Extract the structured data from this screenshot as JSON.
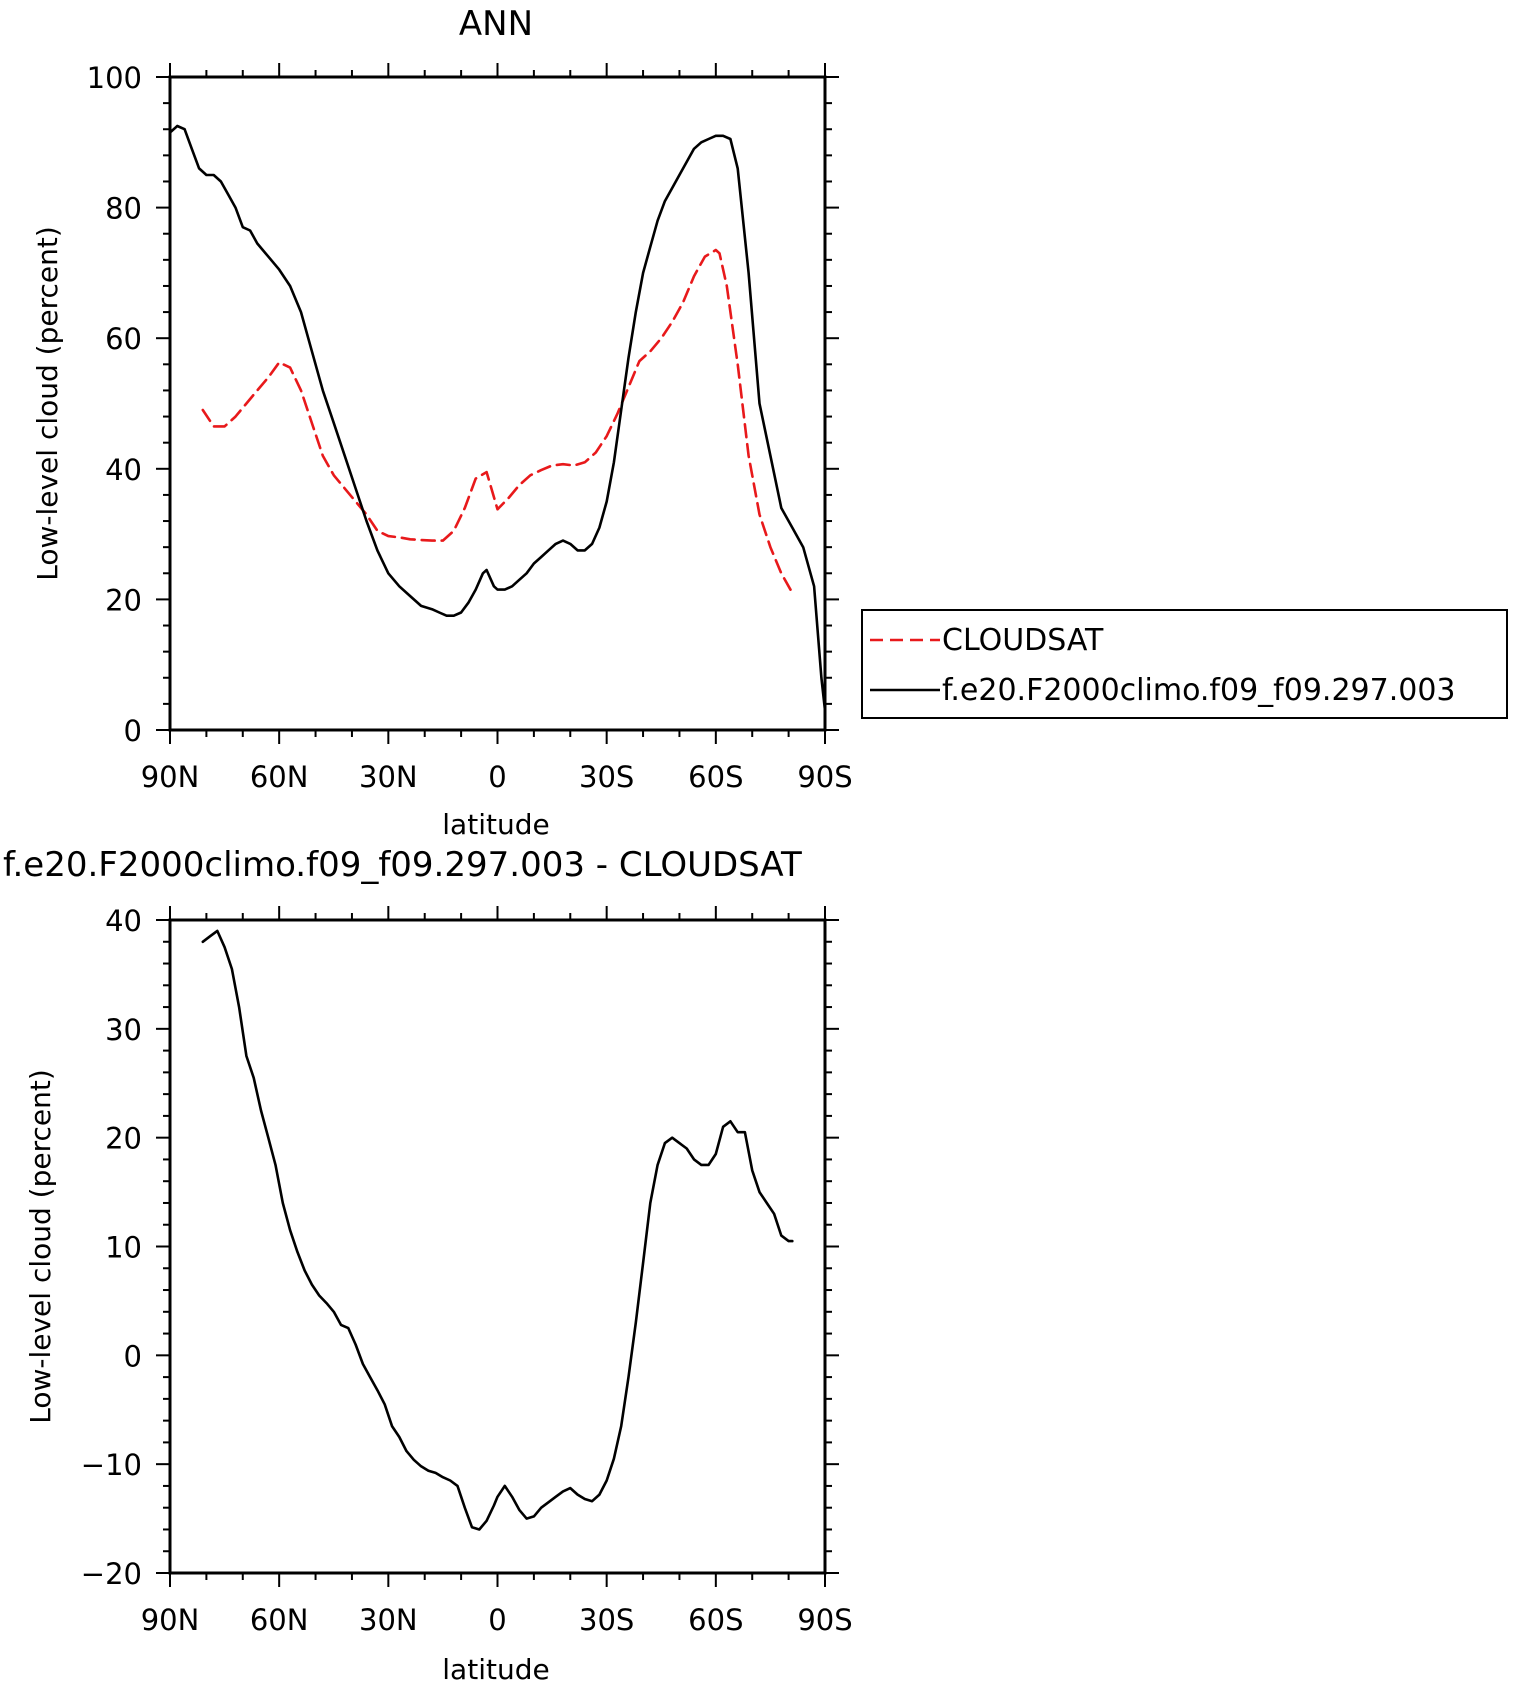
{
  "chart_data": [
    {
      "type": "line",
      "title": "ANN",
      "xlabel": "latitude",
      "ylabel": "Low-level cloud (percent)",
      "xlim": [
        90,
        -90
      ],
      "ylim": [
        0,
        100
      ],
      "xticks": [
        90,
        60,
        30,
        0,
        -30,
        -60,
        -90
      ],
      "xtick_labels": [
        "90N",
        "60N",
        "30N",
        "0",
        "30S",
        "60S",
        "90S"
      ],
      "yticks": [
        0,
        20,
        40,
        60,
        80,
        100
      ],
      "ytick_labels": [
        "0",
        "20",
        "40",
        "60",
        "80",
        "100"
      ],
      "grid": false,
      "legend_position": "right",
      "series": [
        {
          "name": "CLOUDSAT",
          "color": "#e8191b",
          "dash": "dashed",
          "x": [
            81,
            78,
            75,
            72,
            69,
            66,
            63,
            60,
            57,
            54,
            51,
            48,
            45,
            42,
            39,
            36,
            33,
            30,
            27,
            24,
            21,
            18,
            15,
            12,
            9,
            6,
            3,
            0,
            -3,
            -6,
            -9,
            -12,
            -15,
            -18,
            -21,
            -24,
            -27,
            -30,
            -33,
            -36,
            -39,
            -42,
            -45,
            -48,
            -51,
            -54,
            -57,
            -60,
            -61,
            -63,
            -66,
            -69,
            -72,
            -75,
            -78,
            -81
          ],
          "y": [
            49,
            46.5,
            46.5,
            48,
            50,
            52,
            54,
            56.3,
            55.5,
            52,
            47,
            42,
            39,
            37,
            35,
            33,
            30.5,
            29.7,
            29.5,
            29.2,
            29.1,
            29,
            29,
            30.5,
            34,
            38.5,
            39.5,
            33.8,
            35.5,
            37.5,
            39,
            39.8,
            40.5,
            40.7,
            40.5,
            41,
            42.5,
            45,
            48.5,
            52.5,
            56.5,
            58,
            60,
            62.5,
            65.5,
            69.5,
            72.5,
            73.5,
            73,
            68,
            56,
            42,
            33,
            28,
            24,
            21
          ]
        },
        {
          "name": "f.e20.F2000climo.f09_f09.297.003",
          "color": "#000000",
          "dash": "solid",
          "x": [
            90,
            88,
            86,
            84,
            82,
            80,
            78,
            76,
            74,
            72,
            70,
            68,
            66,
            63,
            60,
            57,
            54,
            51,
            48,
            45,
            42,
            39,
            36,
            33,
            30,
            27,
            24,
            21,
            18,
            16,
            14,
            12,
            10,
            8,
            6,
            4,
            3,
            1,
            0,
            -2,
            -4,
            -6,
            -8,
            -10,
            -12,
            -14,
            -16,
            -18,
            -20,
            -22,
            -24,
            -26,
            -28,
            -30,
            -32,
            -34,
            -36,
            -38,
            -40,
            -42,
            -44,
            -46,
            -48,
            -50,
            -52,
            -54,
            -56,
            -58,
            -60,
            -62,
            -64,
            -66,
            -69,
            -72,
            -75,
            -78,
            -81,
            -84,
            -87,
            -89,
            -90
          ],
          "y": [
            91.5,
            92.5,
            92,
            89,
            86,
            85,
            85,
            84,
            82,
            80,
            77,
            76.5,
            74.5,
            72.5,
            70.5,
            68,
            64,
            58,
            52,
            47,
            42,
            37,
            32,
            27.5,
            24,
            22,
            20.5,
            19,
            18.5,
            18,
            17.5,
            17.5,
            18,
            19.5,
            21.5,
            24,
            24.5,
            22,
            21.5,
            21.5,
            22,
            23,
            24,
            25.5,
            26.5,
            27.5,
            28.5,
            29,
            28.5,
            27.5,
            27.5,
            28.5,
            31,
            35,
            41,
            49,
            57,
            64,
            70,
            74,
            78,
            81,
            83,
            85,
            87,
            89,
            90,
            90.5,
            91,
            91,
            90.5,
            86,
            70,
            50,
            42,
            34,
            31,
            28,
            22,
            8,
            3
          ]
        }
      ]
    },
    {
      "type": "line",
      "title": "f.e20.F2000climo.f09_f09.297.003 - CLOUDSAT",
      "xlabel": "latitude",
      "ylabel": "Low-level cloud (percent)",
      "xlim": [
        90,
        -90
      ],
      "ylim": [
        -20,
        40
      ],
      "xticks": [
        90,
        60,
        30,
        0,
        -30,
        -60,
        -90
      ],
      "xtick_labels": [
        "90N",
        "60N",
        "30N",
        "0",
        "30S",
        "60S",
        "90S"
      ],
      "yticks": [
        -20,
        -10,
        0,
        10,
        20,
        30,
        40
      ],
      "ytick_labels": [
        "−20",
        "−10",
        "0",
        "10",
        "20",
        "30",
        "40"
      ],
      "grid": false,
      "series": [
        {
          "color": "#000000",
          "dash": "solid",
          "x": [
            81,
            79,
            77,
            75,
            73,
            71,
            69,
            67,
            65,
            63,
            61,
            59,
            57,
            55,
            53,
            51,
            49,
            47,
            45,
            43,
            41,
            39,
            37,
            35,
            33,
            31,
            29,
            27,
            25,
            23,
            21,
            19,
            17,
            15,
            13,
            11,
            9,
            7,
            5,
            3,
            1,
            0,
            -2,
            -4,
            -6,
            -8,
            -10,
            -12,
            -14,
            -16,
            -18,
            -20,
            -22,
            -24,
            -26,
            -28,
            -30,
            -32,
            -34,
            -36,
            -38,
            -40,
            -42,
            -44,
            -46,
            -48,
            -50,
            -52,
            -54,
            -56,
            -58,
            -60,
            -62,
            -64,
            -66,
            -68,
            -70,
            -72,
            -74,
            -76,
            -78,
            -80,
            -81
          ],
          "y": [
            38,
            38.5,
            39,
            37.5,
            35.5,
            32,
            27.5,
            25.5,
            22.5,
            20,
            17.5,
            14,
            11.5,
            9.5,
            7.8,
            6.5,
            5.5,
            4.8,
            4,
            2.8,
            2.5,
            1,
            -0.8,
            -2,
            -3.2,
            -4.5,
            -6.5,
            -7.5,
            -8.8,
            -9.6,
            -10.2,
            -10.6,
            -10.8,
            -11.2,
            -11.5,
            -12,
            -14,
            -15.8,
            -16,
            -15.2,
            -13.8,
            -13,
            -12,
            -13,
            -14.2,
            -15,
            -14.8,
            -14,
            -13.5,
            -13,
            -12.5,
            -12.2,
            -12.8,
            -13.2,
            -13.4,
            -12.8,
            -11.5,
            -9.5,
            -6.5,
            -2,
            3,
            8.5,
            14,
            17.5,
            19.5,
            20,
            19.5,
            19,
            18,
            17.5,
            17.5,
            18.5,
            21,
            21.5,
            20.5,
            20.5,
            17,
            15,
            14,
            13,
            11,
            10.5,
            10.5
          ]
        }
      ]
    }
  ]
}
